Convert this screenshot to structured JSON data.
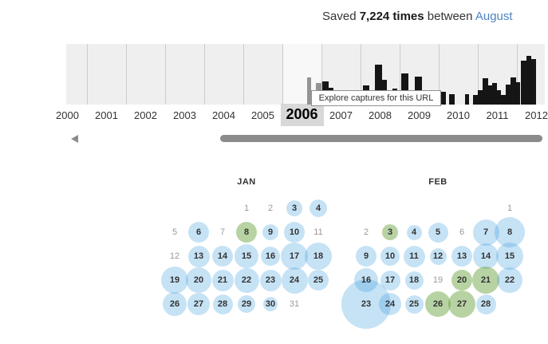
{
  "header": {
    "prefix": "Saved",
    "count": "7,224 times",
    "middle": "between",
    "link_text": "August"
  },
  "timeline": {
    "tooltip": "Explore captures for this URL",
    "years": [
      "2000",
      "2001",
      "2002",
      "2003",
      "2004",
      "2005",
      "2006",
      "2007",
      "2008",
      "2009",
      "2010",
      "2011",
      "2012"
    ],
    "selected_year": "2006",
    "selected_index": 6,
    "bars": [
      [
        385,
        5,
        34,
        "g"
      ],
      [
        396,
        7,
        27,
        "g"
      ],
      [
        404,
        8,
        29,
        "k"
      ],
      [
        412,
        6,
        21,
        "k"
      ],
      [
        418,
        8,
        16,
        "k"
      ],
      [
        426,
        6,
        9,
        "k"
      ],
      [
        432,
        8,
        9,
        "k"
      ],
      [
        441,
        7,
        16,
        "k"
      ],
      [
        455,
        8,
        24,
        "k"
      ],
      [
        463,
        5,
        17,
        "k"
      ],
      [
        470,
        9,
        50,
        "k"
      ],
      [
        479,
        6,
        31,
        "k"
      ],
      [
        486,
        5,
        12,
        "k"
      ],
      [
        492,
        6,
        20,
        "k"
      ],
      [
        503,
        9,
        39,
        "k"
      ],
      [
        512,
        6,
        18,
        "k"
      ],
      [
        520,
        9,
        35,
        "k"
      ],
      [
        532,
        5,
        10,
        "k"
      ],
      [
        540,
        5,
        8,
        "k"
      ],
      [
        553,
        6,
        16,
        "k"
      ],
      [
        563,
        7,
        13,
        "k"
      ],
      [
        583,
        5,
        13,
        "k"
      ],
      [
        593,
        6,
        12,
        "k"
      ],
      [
        599,
        6,
        18,
        "k"
      ],
      [
        605,
        7,
        33,
        "k"
      ],
      [
        612,
        5,
        24,
        "k"
      ],
      [
        617,
        6,
        27,
        "k"
      ],
      [
        623,
        5,
        18,
        "k"
      ],
      [
        628,
        6,
        12,
        "k"
      ],
      [
        634,
        6,
        25,
        "k"
      ],
      [
        640,
        7,
        34,
        "k"
      ],
      [
        647,
        5,
        28,
        "k"
      ],
      [
        653,
        7,
        55,
        "k"
      ],
      [
        660,
        6,
        61,
        "k"
      ],
      [
        666,
        6,
        57,
        "k"
      ]
    ]
  },
  "calendar": {
    "months": [
      {
        "label": "JAN",
        "days": [
          [
            1,
            4,
            1,
            0,
            ""
          ],
          [
            2,
            5,
            1,
            0,
            ""
          ],
          [
            3,
            6,
            1,
            20,
            "b"
          ],
          [
            4,
            7,
            1,
            22,
            "b"
          ],
          [
            5,
            1,
            2,
            0,
            ""
          ],
          [
            6,
            2,
            2,
            26,
            "b"
          ],
          [
            7,
            3,
            2,
            0,
            ""
          ],
          [
            8,
            4,
            2,
            26,
            "g"
          ],
          [
            9,
            5,
            2,
            20,
            "b"
          ],
          [
            10,
            6,
            2,
            26,
            "b"
          ],
          [
            11,
            7,
            2,
            0,
            ""
          ],
          [
            12,
            1,
            3,
            0,
            ""
          ],
          [
            13,
            2,
            3,
            27,
            "b"
          ],
          [
            14,
            3,
            3,
            26,
            "b"
          ],
          [
            15,
            4,
            3,
            30,
            "b"
          ],
          [
            16,
            5,
            3,
            24,
            "b"
          ],
          [
            17,
            6,
            3,
            34,
            "b"
          ],
          [
            18,
            7,
            3,
            34,
            "b"
          ],
          [
            19,
            1,
            4,
            34,
            "b"
          ],
          [
            20,
            2,
            4,
            32,
            "b"
          ],
          [
            21,
            3,
            4,
            27,
            "b"
          ],
          [
            22,
            4,
            4,
            31,
            "b"
          ],
          [
            23,
            5,
            4,
            27,
            "b"
          ],
          [
            24,
            6,
            4,
            33,
            "b"
          ],
          [
            25,
            7,
            4,
            26,
            "b"
          ],
          [
            26,
            1,
            5,
            30,
            "b"
          ],
          [
            27,
            2,
            5,
            28,
            "b"
          ],
          [
            28,
            3,
            5,
            25,
            "b"
          ],
          [
            29,
            4,
            5,
            22,
            "b"
          ],
          [
            30,
            5,
            5,
            18,
            "b"
          ],
          [
            31,
            6,
            5,
            0,
            ""
          ]
        ]
      },
      {
        "label": "FEB",
        "days": [
          [
            1,
            7,
            1,
            0,
            ""
          ],
          [
            2,
            1,
            2,
            0,
            ""
          ],
          [
            3,
            2,
            2,
            20,
            "g"
          ],
          [
            4,
            3,
            2,
            19,
            "b"
          ],
          [
            5,
            4,
            2,
            25,
            "b"
          ],
          [
            6,
            5,
            2,
            0,
            ""
          ],
          [
            7,
            6,
            2,
            33,
            "b"
          ],
          [
            8,
            7,
            2,
            38,
            "b"
          ],
          [
            9,
            1,
            3,
            26,
            "b"
          ],
          [
            10,
            2,
            3,
            24,
            "b"
          ],
          [
            11,
            3,
            3,
            27,
            "b"
          ],
          [
            12,
            4,
            3,
            21,
            "b"
          ],
          [
            13,
            5,
            3,
            26,
            "b"
          ],
          [
            14,
            6,
            3,
            32,
            "b"
          ],
          [
            15,
            7,
            3,
            34,
            "b"
          ],
          [
            16,
            1,
            4,
            30,
            "b"
          ],
          [
            17,
            2,
            4,
            25,
            "b"
          ],
          [
            18,
            3,
            4,
            23,
            "b"
          ],
          [
            19,
            4,
            4,
            0,
            ""
          ],
          [
            20,
            5,
            4,
            26,
            "g"
          ],
          [
            21,
            6,
            4,
            34,
            "g"
          ],
          [
            22,
            7,
            4,
            32,
            "b"
          ],
          [
            23,
            1,
            5,
            62,
            "b"
          ],
          [
            24,
            2,
            5,
            28,
            "b"
          ],
          [
            25,
            3,
            5,
            23,
            "b"
          ],
          [
            26,
            4,
            5,
            32,
            "g"
          ],
          [
            27,
            5,
            5,
            34,
            "g"
          ],
          [
            28,
            6,
            5,
            25,
            "b"
          ]
        ]
      }
    ]
  },
  "icons": {
    "scroll_left": "scroll-left-arrow-icon"
  },
  "colors": {
    "link_blue": "#4e83c3",
    "circle_blue": "rgba(50,150,220,0.28)",
    "circle_green": "rgba(85,150,35,0.42)",
    "bar_black": "#151515",
    "bar_gray": "#949494",
    "panel_gray": "#efefef",
    "selected_year_bg": "#d8d8d8",
    "scrollbar_gray": "#8b8b8b"
  }
}
